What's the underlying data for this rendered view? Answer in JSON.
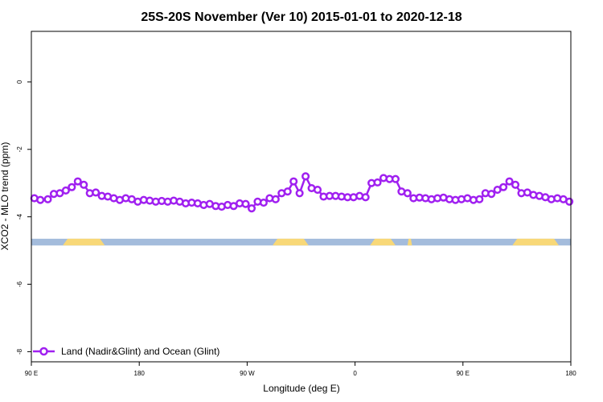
{
  "chart_data": {
    "type": "line",
    "title": "25S-20S November (Ver 10)   2015-01-01 to 2020-12-18",
    "xlabel": "Longitude (deg E)",
    "ylabel": "XCO2 - MLO trend (ppm)",
    "xlim": [
      90,
      450
    ],
    "ylim": [
      -8.3,
      1.5
    ],
    "x_ticks": [
      {
        "value": 90,
        "label": "90 E"
      },
      {
        "value": 162,
        "label": "180"
      },
      {
        "value": 234,
        "label": "90 W"
      },
      {
        "value": 306,
        "label": "0"
      },
      {
        "value": 378,
        "label": "90 E"
      },
      {
        "value": 450,
        "label": "180"
      }
    ],
    "y_ticks": [
      {
        "value": 0,
        "label": "0"
      },
      {
        "value": -2,
        "label": "-2"
      },
      {
        "value": -4,
        "label": "-4"
      },
      {
        "value": -6,
        "label": "-6"
      },
      {
        "value": -8,
        "label": "-8"
      }
    ],
    "legend": {
      "position": "bottom-left",
      "entries": [
        "Land (Nadir&Glint) and Ocean (Glint)"
      ]
    },
    "series_color": "#a020f0",
    "land_color": "#f8d878",
    "ocean_color": "#a4bcdc",
    "surface_bar": {
      "y_top": -4.65,
      "y_bottom": -4.85,
      "land_segments": [
        [
          111,
          139
        ],
        [
          251,
          275
        ],
        [
          316,
          333
        ],
        [
          341,
          344
        ],
        [
          411,
          442
        ]
      ]
    },
    "series": [
      {
        "name": "Land (Nadir&Glint) and Ocean (Glint)",
        "x": [
          92,
          96,
          101,
          105,
          109,
          113,
          117,
          121,
          125,
          129,
          133,
          137,
          141,
          145,
          149,
          153,
          157,
          161,
          165,
          169,
          173,
          177,
          181,
          185,
          189,
          193,
          197,
          201,
          205,
          209,
          213,
          217,
          221,
          225,
          229,
          233,
          237,
          241,
          245,
          249,
          253,
          257,
          261,
          265,
          269,
          273,
          277,
          281,
          285,
          289,
          293,
          297,
          301,
          305,
          309,
          313,
          317,
          321,
          325,
          329,
          333,
          337,
          341,
          345,
          349,
          353,
          357,
          361,
          365,
          369,
          373,
          377,
          381,
          385,
          389,
          393,
          397,
          401,
          405,
          409,
          413,
          417,
          421,
          425,
          429,
          433,
          437,
          441,
          445,
          449
        ],
        "values": [
          -3.45,
          -3.5,
          -3.48,
          -3.32,
          -3.3,
          -3.22,
          -3.12,
          -2.95,
          -3.05,
          -3.3,
          -3.28,
          -3.38,
          -3.4,
          -3.45,
          -3.5,
          -3.45,
          -3.48,
          -3.55,
          -3.5,
          -3.52,
          -3.55,
          -3.53,
          -3.55,
          -3.52,
          -3.55,
          -3.6,
          -3.58,
          -3.6,
          -3.65,
          -3.62,
          -3.68,
          -3.7,
          -3.65,
          -3.68,
          -3.6,
          -3.62,
          -3.75,
          -3.55,
          -3.58,
          -3.45,
          -3.48,
          -3.3,
          -3.25,
          -2.95,
          -3.3,
          -2.8,
          -3.15,
          -3.2,
          -3.4,
          -3.38,
          -3.38,
          -3.4,
          -3.42,
          -3.42,
          -3.38,
          -3.42,
          -3.0,
          -2.98,
          -2.85,
          -2.88,
          -2.88,
          -3.25,
          -3.3,
          -3.45,
          -3.43,
          -3.45,
          -3.48,
          -3.45,
          -3.43,
          -3.48,
          -3.5,
          -3.48,
          -3.45,
          -3.5,
          -3.48,
          -3.3,
          -3.32,
          -3.2,
          -3.12,
          -2.95,
          -3.05,
          -3.3,
          -3.28,
          -3.35,
          -3.38,
          -3.42,
          -3.48,
          -3.45,
          -3.48,
          -3.55
        ]
      }
    ]
  }
}
